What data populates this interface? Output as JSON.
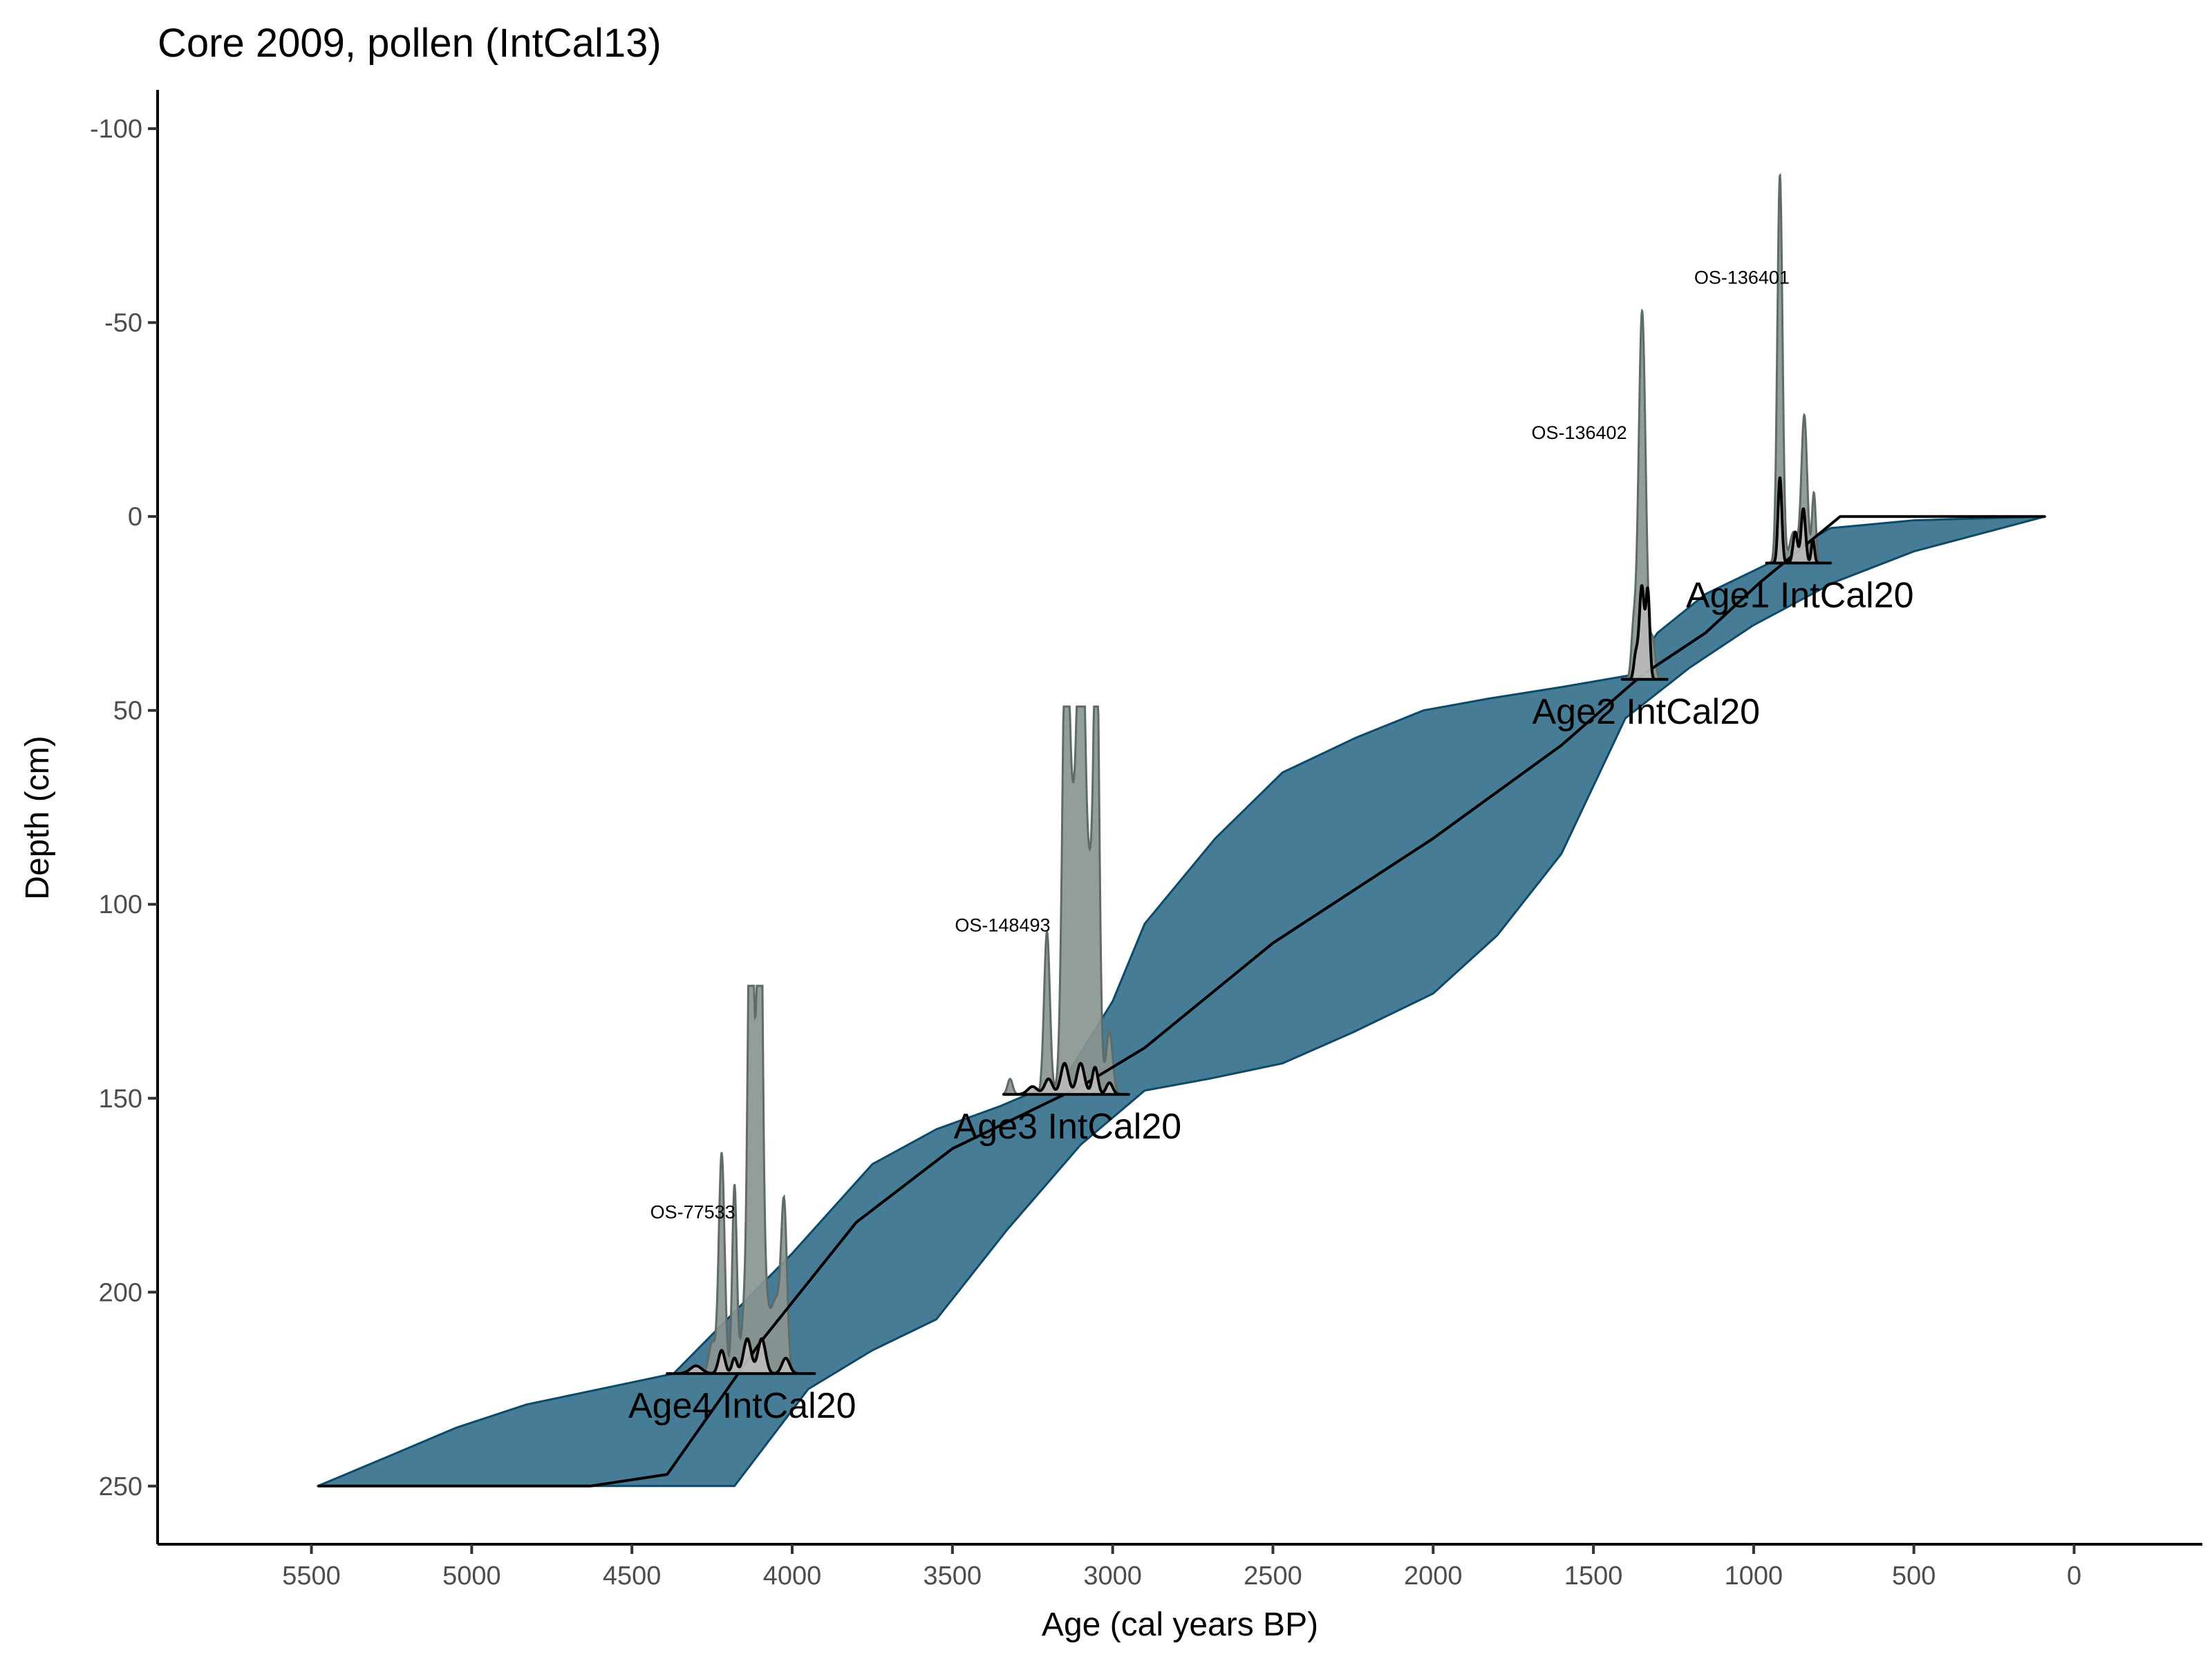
{
  "chart_data": {
    "type": "area",
    "title": "Core 2009, pollen (IntCal13)",
    "xlabel": "Age (cal years BP)",
    "ylabel": "Depth (cm)",
    "xlim": [
      5980,
      -400
    ],
    "ylim": [
      -110,
      265
    ],
    "x_reversed": true,
    "y_reversed": true,
    "grid": false,
    "legend": "none",
    "x_ticks": [
      {
        "value": 5500,
        "label": "5500"
      },
      {
        "value": 5000,
        "label": "5000"
      },
      {
        "value": 4500,
        "label": "4500"
      },
      {
        "value": 4000,
        "label": "4000"
      },
      {
        "value": 3500,
        "label": "3500"
      },
      {
        "value": 3000,
        "label": "3000"
      },
      {
        "value": 2500,
        "label": "2500"
      },
      {
        "value": 2000,
        "label": "2000"
      },
      {
        "value": 1500,
        "label": "1500"
      },
      {
        "value": 1000,
        "label": "1000"
      },
      {
        "value": 500,
        "label": "500"
      },
      {
        "value": 0,
        "label": "0"
      }
    ],
    "y_ticks": [
      {
        "value": -100,
        "label": "-100"
      },
      {
        "value": -50,
        "label": "-50"
      },
      {
        "value": 0,
        "label": "0"
      },
      {
        "value": 50,
        "label": "50"
      },
      {
        "value": 100,
        "label": "100"
      },
      {
        "value": 150,
        "label": "150"
      },
      {
        "value": 200,
        "label": "200"
      },
      {
        "value": 250,
        "label": "250"
      }
    ],
    "uncertainty_band": {
      "color": "#1f5f80",
      "outline": "#0d4a6a",
      "upper_edge": [
        {
          "age": 5480,
          "depth": 250
        },
        {
          "age": 5250,
          "depth": 242
        },
        {
          "age": 5050,
          "depth": 235
        },
        {
          "age": 4830,
          "depth": 229
        },
        {
          "age": 4370,
          "depth": 221
        },
        {
          "age": 4000,
          "depth": 190
        },
        {
          "age": 3750,
          "depth": 167
        },
        {
          "age": 3550,
          "depth": 158
        },
        {
          "age": 3350,
          "depth": 152
        },
        {
          "age": 3150,
          "depth": 145
        },
        {
          "age": 3000,
          "depth": 125
        },
        {
          "age": 2900,
          "depth": 105
        },
        {
          "age": 2680,
          "depth": 83
        },
        {
          "age": 2470,
          "depth": 66
        },
        {
          "age": 2240,
          "depth": 57
        },
        {
          "age": 2030,
          "depth": 50
        },
        {
          "age": 1830,
          "depth": 47
        },
        {
          "age": 1600,
          "depth": 44
        },
        {
          "age": 1390,
          "depth": 41
        },
        {
          "age": 1300,
          "depth": 30
        },
        {
          "age": 1150,
          "depth": 20
        },
        {
          "age": 950,
          "depth": 12
        },
        {
          "age": 760,
          "depth": 3
        },
        {
          "age": 500,
          "depth": 1
        },
        {
          "age": 90,
          "depth": 0
        }
      ],
      "lower_edge": [
        {
          "age": 90,
          "depth": 0
        },
        {
          "age": 500,
          "depth": 9
        },
        {
          "age": 750,
          "depth": 17
        },
        {
          "age": 1000,
          "depth": 28
        },
        {
          "age": 1200,
          "depth": 39
        },
        {
          "age": 1400,
          "depth": 52
        },
        {
          "age": 1600,
          "depth": 87
        },
        {
          "age": 1800,
          "depth": 108
        },
        {
          "age": 2000,
          "depth": 123
        },
        {
          "age": 2250,
          "depth": 133
        },
        {
          "age": 2470,
          "depth": 141
        },
        {
          "age": 2700,
          "depth": 145
        },
        {
          "age": 2900,
          "depth": 148
        },
        {
          "age": 3100,
          "depth": 162
        },
        {
          "age": 3330,
          "depth": 184
        },
        {
          "age": 3550,
          "depth": 207
        },
        {
          "age": 3750,
          "depth": 215
        },
        {
          "age": 3950,
          "depth": 225
        },
        {
          "age": 4180,
          "depth": 250
        },
        {
          "age": 5480,
          "depth": 250
        }
      ]
    },
    "median_line": {
      "color": "#000000",
      "points": [
        {
          "age": 5480,
          "depth": 250
        },
        {
          "age": 4630,
          "depth": 250
        },
        {
          "age": 4390,
          "depth": 247
        },
        {
          "age": 4100,
          "depth": 213
        },
        {
          "age": 3800,
          "depth": 182
        },
        {
          "age": 3500,
          "depth": 163
        },
        {
          "age": 3100,
          "depth": 147
        },
        {
          "age": 2900,
          "depth": 137
        },
        {
          "age": 2500,
          "depth": 110
        },
        {
          "age": 2000,
          "depth": 83
        },
        {
          "age": 1600,
          "depth": 59
        },
        {
          "age": 1350,
          "depth": 41
        },
        {
          "age": 1150,
          "depth": 30
        },
        {
          "age": 980,
          "depth": 17
        },
        {
          "age": 730,
          "depth": 0
        },
        {
          "age": 90,
          "depth": 0
        }
      ]
    },
    "dates": [
      {
        "id": "OS-136401",
        "label": "Age1 IntCal20",
        "depth": 12,
        "range": [
          760,
          960
        ],
        "prior_peaks": [
          {
            "age": 918,
            "width": 8,
            "height": 100
          },
          {
            "age": 842,
            "width": 9,
            "height": 38
          },
          {
            "age": 812,
            "width": 6,
            "height": 18
          },
          {
            "age": 875,
            "width": 12,
            "height": 8
          }
        ],
        "posterior_peaks": [
          {
            "age": 918,
            "width": 6,
            "height": 22
          },
          {
            "age": 870,
            "width": 7,
            "height": 8
          },
          {
            "age": 845,
            "width": 7,
            "height": 14
          },
          {
            "age": 815,
            "width": 5,
            "height": 6
          }
        ]
      },
      {
        "id": "OS-136402",
        "label": "Age2 IntCal20",
        "depth": 42,
        "range": [
          1270,
          1410
        ],
        "prior_peaks": [
          {
            "age": 1348,
            "width": 11,
            "height": 95
          },
          {
            "age": 1375,
            "width": 7,
            "height": 12
          },
          {
            "age": 1315,
            "width": 8,
            "height": 10
          }
        ],
        "posterior_peaks": [
          {
            "age": 1349,
            "width": 8,
            "height": 24
          },
          {
            "age": 1330,
            "width": 6,
            "height": 22
          },
          {
            "age": 1368,
            "width": 6,
            "height": 6
          }
        ]
      },
      {
        "id": "OS-148493",
        "label": "Age3 IntCal20",
        "depth": 149,
        "range": [
          2950,
          3340
        ],
        "prior_peaks": [
          {
            "age": 3147,
            "width": 10,
            "height": 98
          },
          {
            "age": 3098,
            "width": 10,
            "height": 98
          },
          {
            "age": 3050,
            "width": 8,
            "height": 98
          },
          {
            "age": 3122,
            "width": 20,
            "height": 70
          },
          {
            "age": 3205,
            "width": 9,
            "height": 42
          },
          {
            "age": 3070,
            "width": 18,
            "height": 55
          },
          {
            "age": 3010,
            "width": 10,
            "height": 16
          },
          {
            "age": 3320,
            "width": 8,
            "height": 4
          }
        ],
        "posterior_peaks": [
          {
            "age": 3150,
            "width": 12,
            "height": 8
          },
          {
            "age": 3100,
            "width": 12,
            "height": 8
          },
          {
            "age": 3055,
            "width": 9,
            "height": 7
          },
          {
            "age": 3200,
            "width": 12,
            "height": 4
          },
          {
            "age": 3010,
            "width": 10,
            "height": 3
          },
          {
            "age": 3250,
            "width": 15,
            "height": 2
          }
        ]
      },
      {
        "id": "OS-77533",
        "label": "Age4 IntCal20",
        "depth": 221,
        "range": [
          3930,
          4390
        ],
        "prior_peaks": [
          {
            "age": 4130,
            "width": 7,
            "height": 97
          },
          {
            "age": 4100,
            "width": 7,
            "height": 97
          },
          {
            "age": 4115,
            "width": 22,
            "height": 72
          },
          {
            "age": 4220,
            "width": 9,
            "height": 57
          },
          {
            "age": 4180,
            "width": 7,
            "height": 48
          },
          {
            "age": 4025,
            "width": 9,
            "height": 40
          },
          {
            "age": 4050,
            "width": 16,
            "height": 18
          },
          {
            "age": 4250,
            "width": 10,
            "height": 8
          }
        ],
        "posterior_peaks": [
          {
            "age": 4140,
            "width": 12,
            "height": 9
          },
          {
            "age": 4095,
            "width": 12,
            "height": 9
          },
          {
            "age": 4220,
            "width": 10,
            "height": 6
          },
          {
            "age": 4180,
            "width": 8,
            "height": 4
          },
          {
            "age": 4020,
            "width": 12,
            "height": 4
          },
          {
            "age": 4300,
            "width": 18,
            "height": 2
          }
        ]
      }
    ]
  }
}
